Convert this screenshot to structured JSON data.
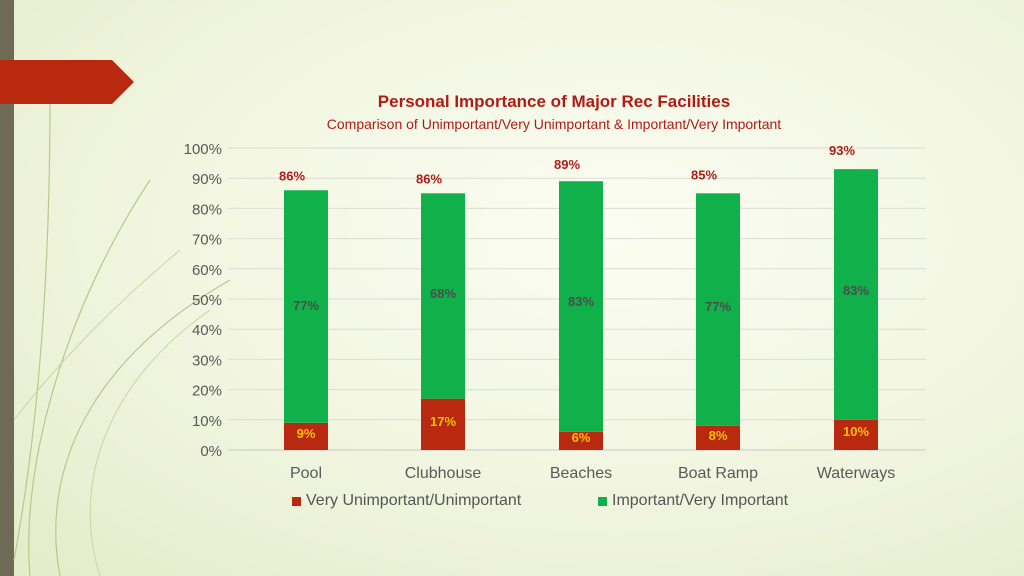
{
  "colors": {
    "unimportant": "#b8290f",
    "important": "#10b14b",
    "total_label": "#b11b17",
    "inner_label_green": "#4d4d4d",
    "inner_label_red": "#f5c000",
    "title": "#b11b17",
    "axis_text": "#595959"
  },
  "chart_data": {
    "type": "bar",
    "stacked": true,
    "title": "Personal Importance of Major Rec Facilities",
    "subtitle": "Comparison of Unimportant/Very Unimportant & Important/Very Important",
    "categories": [
      "Pool",
      "Clubhouse",
      "Beaches",
      "Boat Ramp",
      "Waterways"
    ],
    "series": [
      {
        "name": "Very Unimportant/Unimportant",
        "values": [
          9,
          17,
          6,
          8,
          10
        ],
        "labels": [
          "9%",
          "17%",
          "6%",
          "8%",
          "10%"
        ]
      },
      {
        "name": "Important/Very Important",
        "values": [
          77,
          68,
          83,
          77,
          83
        ],
        "labels": [
          "77%",
          "68%",
          "83%",
          "77%",
          "83%"
        ]
      }
    ],
    "totals": [
      "86%",
      "86%",
      "89%",
      "85%",
      "93%"
    ],
    "ylim": [
      0,
      100
    ],
    "yticks": [
      "0%",
      "10%",
      "20%",
      "30%",
      "40%",
      "50%",
      "60%",
      "70%",
      "80%",
      "90%",
      "100%"
    ],
    "grid": true,
    "legend": "bottom"
  }
}
